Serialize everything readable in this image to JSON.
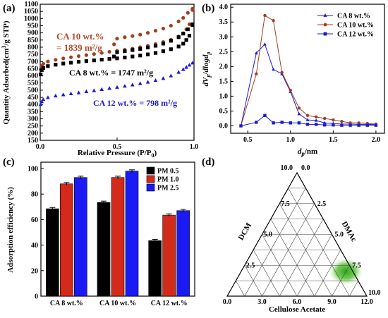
{
  "panels": [
    {
      "label": "(a)",
      "type": "scatter",
      "xlabel": "Relative Pressure (P/P",
      "xlabel_sub": "0",
      "xlabel_end": ")",
      "ylabel": "Quantity Adsorbed(cm",
      "ylabel_sup": "3",
      "ylabel_end": "/g STP)",
      "xlim": [
        0.0,
        1.0
      ],
      "ylim": [
        150,
        1100
      ],
      "xticks": [
        "0.0",
        "0.5",
        "1.0"
      ],
      "yticks": [
        "150",
        "200",
        "250",
        "300",
        "350",
        "400",
        "450",
        "500",
        "550",
        "600",
        "650",
        "700",
        "750",
        "800",
        "850",
        "900",
        "950",
        "1000",
        "1050",
        "1100"
      ],
      "annotations": [
        {
          "text": "CA 10 wt.%",
          "color": "#b5492a"
        },
        {
          "text": "= 1839 m²/g",
          "color": "#b5492a"
        },
        {
          "text": "CA 8 wt.% = 1747 m²/g",
          "color": "#000000"
        },
        {
          "text": "CA 12 wt.% =  798 m²/g",
          "color": "#1a1ad6"
        }
      ],
      "series": [
        {
          "name": "CA 10 wt.%",
          "color": "#a0401f",
          "marker": "circle",
          "x": [
            0.003,
            0.01,
            0.02,
            0.05,
            0.1,
            0.15,
            0.2,
            0.25,
            0.3,
            0.35,
            0.4,
            0.45,
            0.5,
            0.55,
            0.6,
            0.65,
            0.7,
            0.75,
            0.8,
            0.85,
            0.9,
            0.93,
            0.95,
            0.97,
            0.99,
            0.99,
            0.96,
            0.93,
            0.9,
            0.85,
            0.8,
            0.75,
            0.7,
            0.65,
            0.6,
            0.55,
            0.5,
            0.48
          ],
          "y": [
            645,
            670,
            685,
            700,
            712,
            722,
            730,
            738,
            745,
            752,
            760,
            768,
            775,
            782,
            790,
            800,
            810,
            822,
            836,
            852,
            875,
            898,
            925,
            960,
            1060,
            1068,
            1040,
            1005,
            980,
            950,
            930,
            915,
            900,
            888,
            878,
            870,
            860,
            820
          ]
        },
        {
          "name": "CA 8 wt.%",
          "color": "#000000",
          "marker": "square",
          "x": [
            0.003,
            0.01,
            0.02,
            0.05,
            0.1,
            0.15,
            0.2,
            0.25,
            0.3,
            0.35,
            0.4,
            0.45,
            0.5,
            0.55,
            0.6,
            0.65,
            0.7,
            0.75,
            0.8,
            0.85,
            0.9,
            0.93,
            0.95,
            0.97,
            0.99,
            0.99,
            0.96,
            0.93,
            0.9,
            0.85,
            0.8,
            0.75,
            0.7,
            0.65,
            0.6,
            0.55,
            0.5,
            0.48
          ],
          "y": [
            610,
            640,
            655,
            668,
            678,
            686,
            692,
            698,
            703,
            708,
            713,
            718,
            722,
            728,
            735,
            742,
            750,
            760,
            772,
            786,
            805,
            825,
            850,
            880,
            955,
            960,
            925,
            895,
            870,
            845,
            825,
            810,
            798,
            788,
            780,
            772,
            765,
            735
          ]
        },
        {
          "name": "CA 12 wt.%",
          "color": "#1a1ad6",
          "marker": "triangle",
          "x": [
            0.003,
            0.01,
            0.02,
            0.05,
            0.1,
            0.15,
            0.2,
            0.25,
            0.3,
            0.35,
            0.4,
            0.45,
            0.5,
            0.55,
            0.6,
            0.65,
            0.7,
            0.75,
            0.8,
            0.85,
            0.9,
            0.93,
            0.95,
            0.97,
            0.99
          ],
          "y": [
            400,
            420,
            435,
            448,
            460,
            468,
            475,
            482,
            490,
            497,
            505,
            513,
            520,
            528,
            537,
            546,
            556,
            568,
            582,
            600,
            625,
            645,
            660,
            675,
            690
          ]
        }
      ]
    },
    {
      "label": "(b)",
      "type": "line",
      "xlabel": "d",
      "xlabel_sub": "p",
      "xlabel_end": "/nm",
      "ylabel": "dV",
      "ylabel_sub1": "p",
      "ylabel_mid": "/dlogd",
      "ylabel_sub2": "p",
      "xlim": [
        0.3,
        2.1
      ],
      "ylim": [
        -0.25,
        4.1
      ],
      "xticks": [
        "0.5",
        "1.0",
        "1.5",
        "2.0"
      ],
      "yticks": [
        "0.0",
        "0.5",
        "1.0",
        "1.5",
        "2.0",
        "2.5",
        "3.0",
        "3.5",
        "4.0"
      ],
      "series": [
        {
          "name": "CA 8 wt.%",
          "color": "#1a1ad6",
          "marker": "triangle",
          "x": [
            0.42,
            0.6,
            0.7,
            0.8,
            0.9,
            1.0,
            1.1,
            1.2,
            1.3,
            1.4,
            1.5,
            1.6,
            1.7,
            1.8,
            1.9,
            2.0
          ],
          "y": [
            0.0,
            2.45,
            2.75,
            1.9,
            1.75,
            1.15,
            0.4,
            0.2,
            0.18,
            0.1,
            0.08,
            0.06,
            0.06,
            0.05,
            0.05,
            0.04
          ]
        },
        {
          "name": "CA 10 wt.%",
          "color": "#a0401f",
          "marker": "circle",
          "x": [
            0.42,
            0.6,
            0.7,
            0.8,
            0.9,
            1.0,
            1.1,
            1.2,
            1.3,
            1.4,
            1.5,
            1.6,
            1.7,
            1.8,
            1.9,
            2.0
          ],
          "y": [
            0.0,
            1.75,
            3.72,
            3.55,
            1.8,
            1.2,
            0.6,
            0.35,
            0.3,
            0.25,
            0.2,
            0.15,
            0.1,
            0.1,
            0.08,
            0.06
          ]
        },
        {
          "name": "CA 12 wt.%",
          "color": "#1a1ad6",
          "marker": "square",
          "x": [
            0.42,
            0.6,
            0.7,
            0.8,
            0.9,
            1.0,
            1.1,
            1.2,
            1.3,
            1.4,
            1.5,
            1.6,
            1.7,
            1.8,
            1.9,
            2.0
          ],
          "y": [
            0.0,
            0.12,
            0.35,
            0.1,
            0.12,
            0.1,
            0.1,
            0.05,
            0.05,
            0.03,
            0.03,
            0.02,
            0.02,
            0.02,
            0.02,
            0.02
          ]
        }
      ]
    },
    {
      "label": "(c)",
      "type": "bar",
      "ylabel": "Adsorption efficiency (%)",
      "ylim": [
        0,
        105
      ],
      "yticks": [
        "0",
        "20",
        "40",
        "60",
        "80",
        "100"
      ],
      "categories": [
        "CA 8 wt.%",
        "CA 10 wt.%",
        "CA 12 wt.%"
      ],
      "series": [
        {
          "name": "PM 0.5",
          "color": "#000000",
          "values": [
            68.5,
            73.5,
            43.5
          ],
          "errors": [
            1.0,
            1.0,
            1.0
          ]
        },
        {
          "name": "PM 1.0",
          "color": "#d42a1a",
          "values": [
            88.0,
            93.0,
            63.5
          ],
          "errors": [
            1.0,
            1.0,
            1.0
          ]
        },
        {
          "name": "PM 2.5",
          "color": "#1a1af5",
          "values": [
            93.0,
            98.0,
            67.0
          ],
          "errors": [
            1.0,
            1.0,
            1.0
          ]
        }
      ]
    },
    {
      "label": "(d)",
      "type": "ternary",
      "axis_left": "DCM",
      "axis_right": "DMAc",
      "axis_bottom": "Cellulose Acetate",
      "left_ticks": [
        "2.5",
        "5.0",
        "7.5",
        "10.0"
      ],
      "right_ticks": [
        "2.5",
        "5.0",
        "7.5",
        "10.0"
      ],
      "bottom_ticks": [
        "0.0",
        "3.0",
        "6.0",
        "9.0",
        "12.0"
      ],
      "top_ticks": [
        "10.0",
        "0.0"
      ],
      "apex_right_label": "10.0",
      "highlight": {
        "color": "#36b11a",
        "dcm": 0.2,
        "dmac": 0.05,
        "ca": 0.75
      }
    }
  ]
}
